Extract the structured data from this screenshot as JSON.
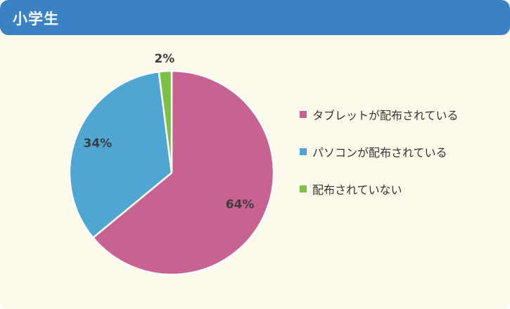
{
  "header": {
    "title": "小学生",
    "color": "#3b82c4"
  },
  "chart_data": {
    "type": "pie",
    "title": "",
    "categories": [
      "タブレットが配布されている",
      "パソコンが配布されている",
      "配布されていない"
    ],
    "values": [
      64,
      34,
      2
    ],
    "labels": [
      "64%",
      "34%",
      "2%"
    ],
    "colors": [
      "#c76291",
      "#4fa6d2",
      "#7cc045"
    ],
    "legend_position": "right",
    "start_angle_deg": 0,
    "direction": "clockwise"
  },
  "legend": {
    "items": [
      {
        "label": "タブレットが配布されている",
        "color": "#c76291"
      },
      {
        "label": "パソコンが配布されている",
        "color": "#4fa6d2"
      },
      {
        "label": "配布されていない",
        "color": "#7cc045"
      }
    ]
  }
}
